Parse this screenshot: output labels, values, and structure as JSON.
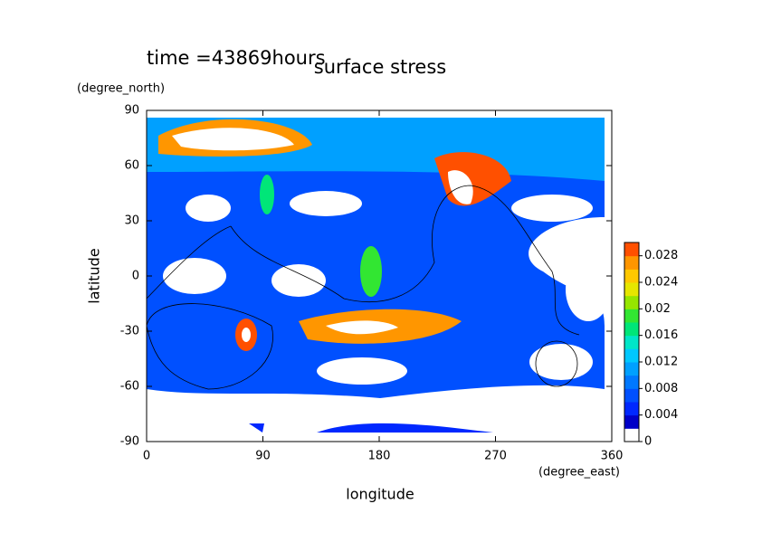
{
  "chart_data": {
    "type": "contour",
    "title": "surface stress",
    "subtitle": "time =43869hours",
    "x_label": "longitude",
    "x_unit": "(degree_east)",
    "y_label": "latitude",
    "y_unit": "(degree_north)",
    "xlim": [
      0,
      360
    ],
    "xticks": [
      0,
      90,
      180,
      270,
      360
    ],
    "ylim": [
      -90,
      90
    ],
    "yticks": [
      -90,
      -60,
      -30,
      0,
      30,
      60,
      90
    ],
    "colorbar": {
      "lim": [
        0,
        0.03
      ],
      "ticks": [
        0,
        0.004,
        0.008,
        0.012,
        0.016,
        0.02,
        0.024,
        0.028
      ],
      "colors": [
        "#ffffff",
        "#0000c8",
        "#0028ff",
        "#0050ff",
        "#0078ff",
        "#00a0ff",
        "#00c8ff",
        "#00e6c8",
        "#00e678",
        "#32e632",
        "#96e600",
        "#e6e600",
        "#ffc800",
        "#ff9600",
        "#ff5000"
      ]
    }
  }
}
